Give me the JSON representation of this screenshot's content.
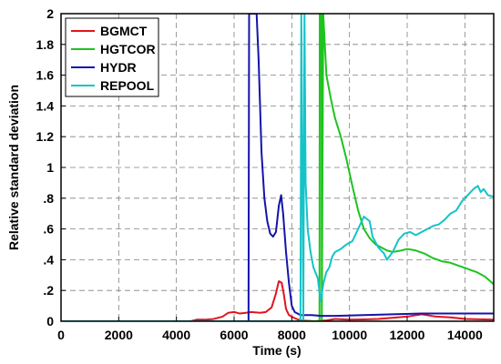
{
  "chart_data": {
    "type": "line",
    "title": "",
    "xlabel": "Time (s)",
    "ylabel": "Relative standard deviation",
    "xlim": [
      0,
      15000
    ],
    "ylim": [
      0,
      2
    ],
    "xticks": [
      0,
      2000,
      4000,
      6000,
      8000,
      10000,
      12000,
      14000
    ],
    "xtick_labels": [
      "0",
      "2000",
      "4000",
      "6000",
      "8000",
      "10000",
      "12000",
      "14000"
    ],
    "yticks": [
      0,
      0.2,
      0.4,
      0.6,
      0.8,
      1,
      1.2,
      1.4,
      1.6,
      1.8,
      2
    ],
    "ytick_labels": [
      "0",
      ".2",
      ".4",
      ".6",
      ".8",
      "1",
      "1.2",
      "1.4",
      "1.6",
      "1.8",
      "2"
    ],
    "grid": true,
    "legend_position": "top-left",
    "series": [
      {
        "name": "BGMCT",
        "color": "#e0141e",
        "points": [
          [
            0,
            0
          ],
          [
            4500,
            0
          ],
          [
            4700,
            0.01
          ],
          [
            5000,
            0.01
          ],
          [
            5300,
            0.015
          ],
          [
            5600,
            0.03
          ],
          [
            5800,
            0.055
          ],
          [
            6000,
            0.06
          ],
          [
            6200,
            0.05
          ],
          [
            6400,
            0.055
          ],
          [
            6600,
            0.06
          ],
          [
            6900,
            0.055
          ],
          [
            7100,
            0.06
          ],
          [
            7300,
            0.09
          ],
          [
            7450,
            0.18
          ],
          [
            7550,
            0.26
          ],
          [
            7650,
            0.25
          ],
          [
            7720,
            0.18
          ],
          [
            7800,
            0.08
          ],
          [
            7900,
            0.04
          ],
          [
            8100,
            0.02
          ],
          [
            8300,
            0.005
          ],
          [
            8800,
            0
          ],
          [
            9200,
            0.005
          ],
          [
            9500,
            0.015
          ],
          [
            10000,
            0.01
          ],
          [
            10500,
            0.012
          ],
          [
            11000,
            0.015
          ],
          [
            12000,
            0.03
          ],
          [
            12500,
            0.045
          ],
          [
            13000,
            0.03
          ],
          [
            13500,
            0.025
          ],
          [
            14000,
            0.015
          ],
          [
            15000,
            0.01
          ]
        ]
      },
      {
        "name": "HGTCOR",
        "color": "#1ec31e",
        "points": [
          [
            0,
            0
          ],
          [
            8900,
            0
          ],
          [
            8960,
            0
          ],
          [
            8970,
            2.0
          ],
          [
            9030,
            2.0
          ],
          [
            9040,
            0
          ],
          [
            9090,
            2.0
          ],
          [
            9200,
            1.6
          ],
          [
            9350,
            1.45
          ],
          [
            9500,
            1.32
          ],
          [
            9700,
            1.2
          ],
          [
            9900,
            1.05
          ],
          [
            10100,
            0.88
          ],
          [
            10300,
            0.72
          ],
          [
            10500,
            0.6
          ],
          [
            10700,
            0.54
          ],
          [
            10900,
            0.5
          ],
          [
            11100,
            0.48
          ],
          [
            11300,
            0.46
          ],
          [
            11500,
            0.45
          ],
          [
            11800,
            0.46
          ],
          [
            12000,
            0.47
          ],
          [
            12300,
            0.46
          ],
          [
            12600,
            0.44
          ],
          [
            12900,
            0.41
          ],
          [
            13200,
            0.39
          ],
          [
            13500,
            0.38
          ],
          [
            13800,
            0.36
          ],
          [
            14100,
            0.34
          ],
          [
            14400,
            0.32
          ],
          [
            14700,
            0.29
          ],
          [
            15000,
            0.24
          ]
        ]
      },
      {
        "name": "HYDR",
        "color": "#1414aa",
        "points": [
          [
            0,
            0
          ],
          [
            6500,
            0
          ],
          [
            6520,
            2.0
          ],
          [
            6780,
            2.0
          ],
          [
            6850,
            1.7
          ],
          [
            6950,
            1.1
          ],
          [
            7050,
            0.8
          ],
          [
            7150,
            0.65
          ],
          [
            7250,
            0.57
          ],
          [
            7350,
            0.55
          ],
          [
            7450,
            0.58
          ],
          [
            7550,
            0.75
          ],
          [
            7630,
            0.82
          ],
          [
            7700,
            0.7
          ],
          [
            7800,
            0.45
          ],
          [
            7900,
            0.25
          ],
          [
            8000,
            0.1
          ],
          [
            8100,
            0.06
          ],
          [
            8300,
            0.04
          ],
          [
            8700,
            0.04
          ],
          [
            9000,
            0.035
          ],
          [
            9500,
            0.035
          ],
          [
            10500,
            0.04
          ],
          [
            11500,
            0.045
          ],
          [
            12500,
            0.05
          ],
          [
            15000,
            0.05
          ]
        ]
      },
      {
        "name": "REPOOL",
        "color": "#14c3c8",
        "points": [
          [
            0,
            0
          ],
          [
            8300,
            0
          ],
          [
            8330,
            2.0
          ],
          [
            8400,
            0
          ],
          [
            8440,
            2.0
          ],
          [
            8480,
            0.9
          ],
          [
            8550,
            0.6
          ],
          [
            8650,
            0.45
          ],
          [
            8750,
            0.35
          ],
          [
            8900,
            0.28
          ],
          [
            9000,
            0.13
          ],
          [
            9100,
            0.25
          ],
          [
            9200,
            0.32
          ],
          [
            9300,
            0.35
          ],
          [
            9400,
            0.42
          ],
          [
            9500,
            0.45
          ],
          [
            9700,
            0.47
          ],
          [
            9900,
            0.5
          ],
          [
            10100,
            0.52
          ],
          [
            10300,
            0.6
          ],
          [
            10500,
            0.68
          ],
          [
            10700,
            0.65
          ],
          [
            10800,
            0.55
          ],
          [
            11000,
            0.48
          ],
          [
            11200,
            0.44
          ],
          [
            11300,
            0.4
          ],
          [
            11500,
            0.45
          ],
          [
            11700,
            0.53
          ],
          [
            11900,
            0.57
          ],
          [
            12100,
            0.58
          ],
          [
            12300,
            0.56
          ],
          [
            12500,
            0.58
          ],
          [
            12700,
            0.6
          ],
          [
            12900,
            0.62
          ],
          [
            13100,
            0.63
          ],
          [
            13300,
            0.66
          ],
          [
            13500,
            0.7
          ],
          [
            13700,
            0.72
          ],
          [
            13900,
            0.78
          ],
          [
            14100,
            0.82
          ],
          [
            14300,
            0.86
          ],
          [
            14450,
            0.88
          ],
          [
            14550,
            0.84
          ],
          [
            14650,
            0.86
          ],
          [
            14800,
            0.82
          ],
          [
            15000,
            0.81
          ]
        ]
      }
    ]
  }
}
